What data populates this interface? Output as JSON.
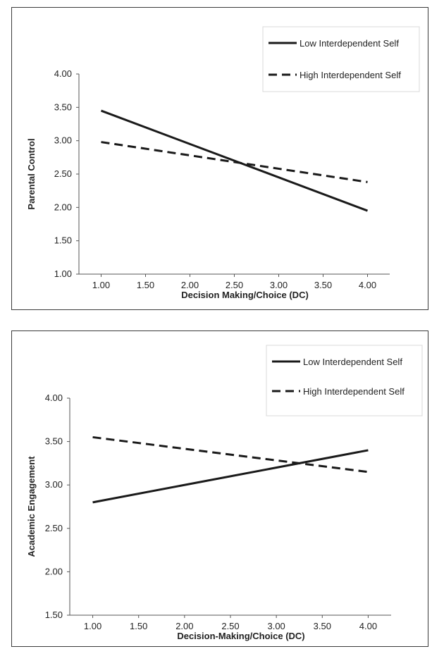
{
  "chart_data": [
    {
      "type": "line",
      "title": "",
      "xlabel": "Decision Making/Choice (DC)",
      "ylabel": "Parental Control",
      "xlim": [
        0.75,
        4.25
      ],
      "ylim": [
        1.0,
        4.0
      ],
      "xticks": [
        "1.00",
        "1.50",
        "2.00",
        "2.50",
        "3.00",
        "3.50",
        "4.00"
      ],
      "yticks": [
        "1.00",
        "1.50",
        "2.00",
        "2.50",
        "3.00",
        "3.50",
        "4.00"
      ],
      "legend_position": "top-right",
      "series": [
        {
          "name": "Low Interdependent Self",
          "style": "solid",
          "x": [
            1.0,
            4.0
          ],
          "y": [
            3.45,
            1.95
          ]
        },
        {
          "name": "High Interdependent Self",
          "style": "dashed",
          "x": [
            1.0,
            4.0
          ],
          "y": [
            2.98,
            2.38
          ]
        }
      ]
    },
    {
      "type": "line",
      "title": "",
      "xlabel": "Decision-Making/Choice (DC)",
      "ylabel": "Academic Engagement",
      "xlim": [
        0.75,
        4.25
      ],
      "ylim": [
        1.5,
        4.0
      ],
      "xticks": [
        "1.00",
        "1.50",
        "2.00",
        "2.50",
        "3.00",
        "3.50",
        "4.00"
      ],
      "yticks": [
        "1.50",
        "2.00",
        "2.50",
        "3.00",
        "3.50",
        "4.00"
      ],
      "legend_position": "top-right",
      "series": [
        {
          "name": "Low Interdependent Self",
          "style": "solid",
          "x": [
            1.0,
            4.0
          ],
          "y": [
            2.8,
            3.4
          ]
        },
        {
          "name": "High Interdependent Self",
          "style": "dashed",
          "x": [
            1.0,
            4.0
          ],
          "y": [
            3.55,
            3.15
          ]
        }
      ]
    }
  ],
  "colors": {
    "line": "#1a1a1a",
    "axis": "#555555"
  }
}
